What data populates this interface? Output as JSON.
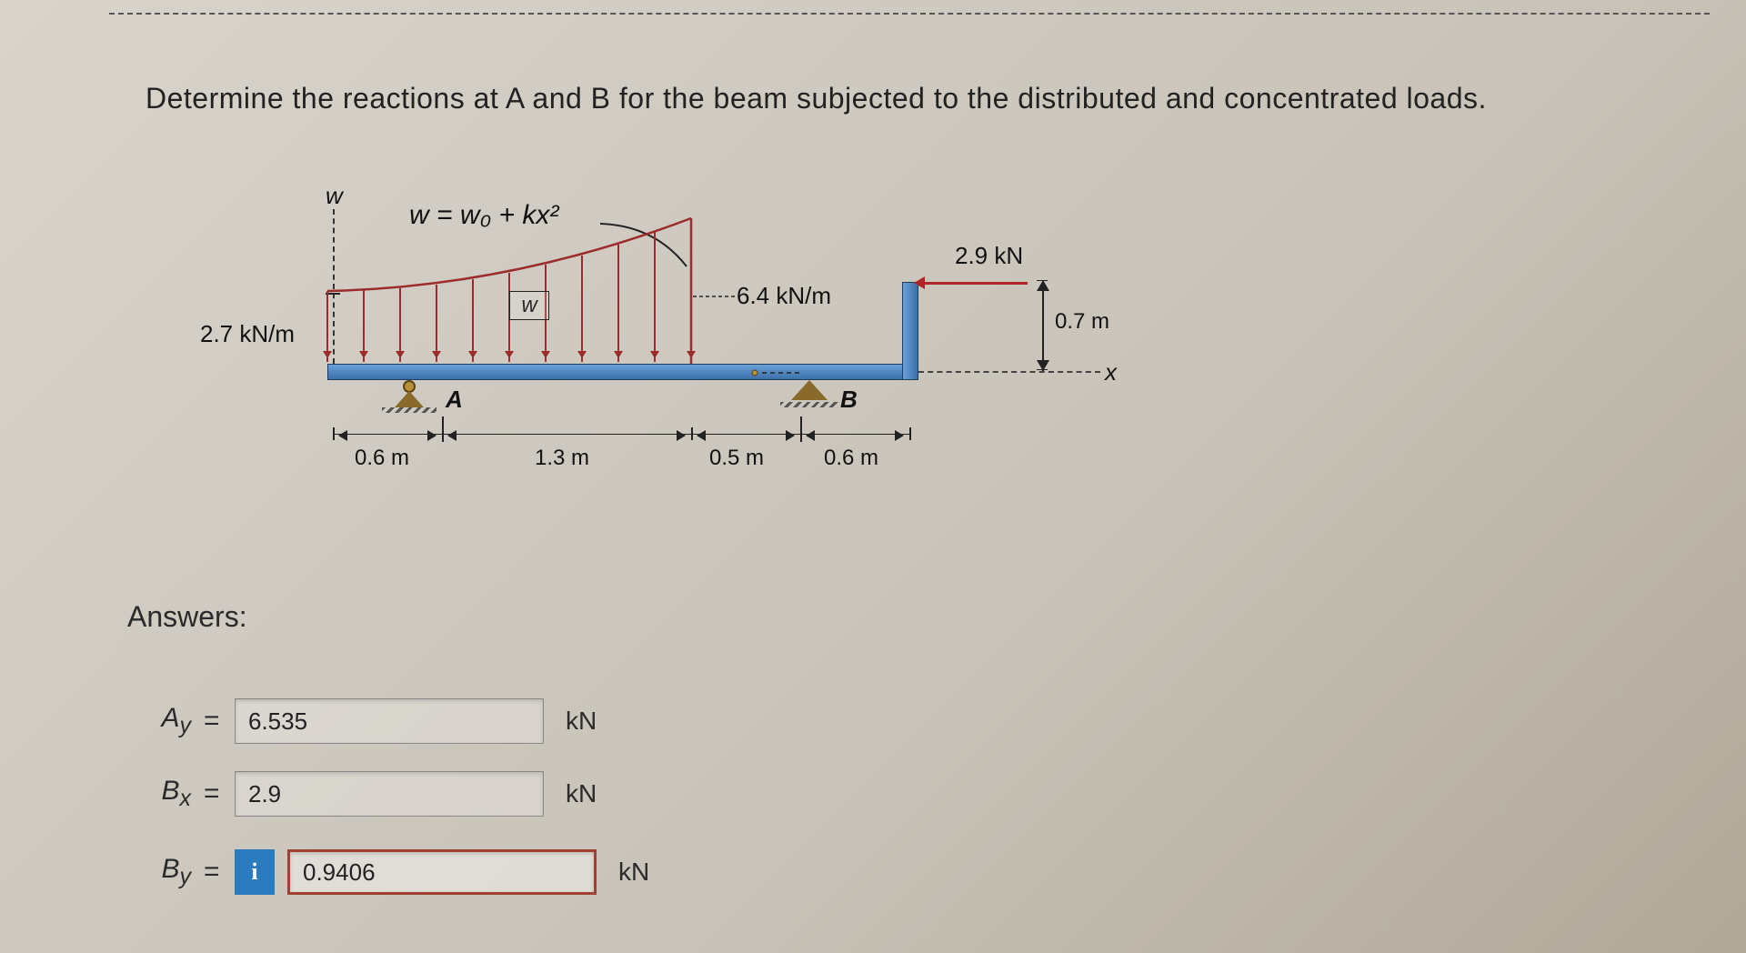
{
  "question_text": "Determine the reactions at A and B for the beam subjected to the distributed and concentrated loads.",
  "diagram": {
    "w_axis_label": "w",
    "load_equation": "w = w₀ + kx²",
    "w_center_label": "w",
    "w0_label": "2.7 kN/m",
    "w_end_label": "6.4 kN/m",
    "horizontal_force": "2.9 kN",
    "moment_arm": "0.7 m",
    "x_axis_label": "x",
    "support_A_label": "A",
    "support_B_label": "B",
    "dimensions": {
      "seg1": "0.6 m",
      "seg2": "1.3 m",
      "seg3": "0.5 m",
      "seg4": "0.6 m"
    },
    "colors": {
      "beam_fill_top": "#6aa0d8",
      "beam_fill_bottom": "#3b6fa8",
      "beam_border": "#1d3d5e",
      "load_line": "#9c2b2b",
      "force_arrow": "#b02525",
      "support_fill": "#8a6a2a",
      "text": "#111111"
    },
    "distributed_load": {
      "type": "parabolic",
      "x_start": 0,
      "x_end": 1.9,
      "w_start": 2.7,
      "w_end": 6.4,
      "arrow_count": 11
    }
  },
  "answers_heading": "Answers:",
  "answers": [
    {
      "var_html": "A<sub>y</sub>",
      "value": "6.535",
      "unit": "kN",
      "highlight": false,
      "info": false
    },
    {
      "var_html": "B<sub>x</sub>",
      "value": "2.9",
      "unit": "kN",
      "highlight": false,
      "info": false
    },
    {
      "var_html": "B<sub>y</sub>",
      "value": "0.9406",
      "unit": "kN",
      "highlight": true,
      "info": true
    }
  ],
  "info_badge_text": "i"
}
